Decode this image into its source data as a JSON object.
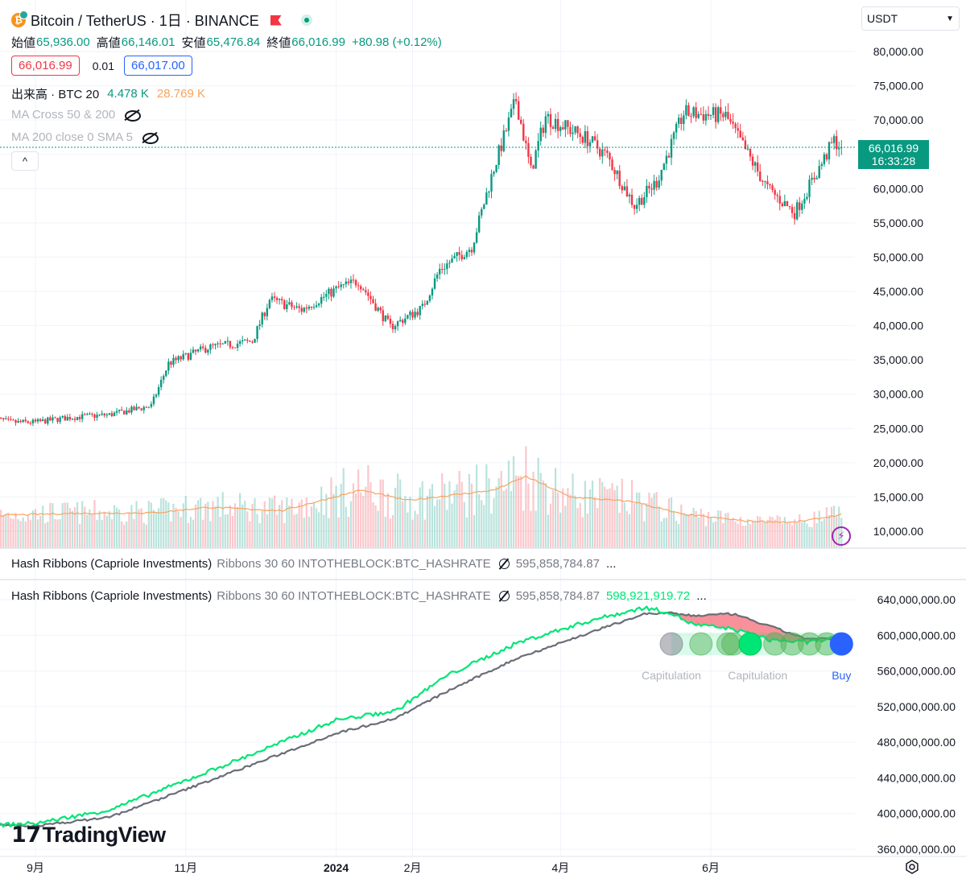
{
  "header": {
    "title": "Bitcoin / TetherUS · 1日 · BINANCE",
    "ohlc": [
      {
        "label": "始値",
        "value": "65,936.00"
      },
      {
        "label": "高値",
        "value": "66,146.01"
      },
      {
        "label": "安値",
        "value": "65,476.84"
      },
      {
        "label": "終値",
        "value": "66,016.99"
      }
    ],
    "change": "+80.98 (+0.12%)",
    "bid": "66,016.99",
    "spread": "0.01",
    "ask": "66,017.00"
  },
  "volume_legend": {
    "label": "出来高 · BTC 20",
    "value1": "4.478 K",
    "value2": "28.769 K"
  },
  "hidden_indicators": [
    "MA Cross 50 & 200",
    "MA 200 close 0 SMA 5"
  ],
  "collapse_label": "^",
  "currency": "USDT",
  "last_price_tag": {
    "price": "66,016.99",
    "countdown": "16:33:28"
  },
  "colors": {
    "up": "#089981",
    "down": "#f23645",
    "hash_fast": "#00e676",
    "hash_slow": "#6a6d78",
    "vol_ma": "#f7a35c",
    "buy": "#2962ff"
  },
  "indicator_pane1": {
    "name": "Hash Ribbons (Capriole Investments)",
    "params": "Ribbons 30 60 INTOTHEBLOCK:BTC_HASHRATE",
    "value": "595,858,784.87",
    "more": "..."
  },
  "indicator_pane2": {
    "name": "Hash Ribbons (Capriole Investments)",
    "params": "Ribbons 30 60 INTOTHEBLOCK:BTC_HASHRATE",
    "value": "595,858,784.87",
    "value2": "598,921,919.72",
    "more": "..."
  },
  "signal_labels": [
    {
      "text": "Capitulation",
      "color": "#b2b5be"
    },
    {
      "text": "Capitulation",
      "color": "#b2b5be"
    },
    {
      "text": "Buy",
      "color": "#2962ff"
    }
  ],
  "watermark": "TradingView",
  "chart_data": {
    "type": "candlestick",
    "price_axis_ticks": [
      "80,000.00",
      "75,000.00",
      "70,000.00",
      "65,000.00",
      "60,000.00",
      "55,000.00",
      "50,000.00",
      "45,000.00",
      "40,000.00",
      "35,000.00",
      "30,000.00",
      "25,000.00",
      "20,000.00",
      "15,000.00",
      "10,000.00"
    ],
    "price_axis_values": [
      80000,
      75000,
      70000,
      65000,
      60000,
      55000,
      50000,
      45000,
      40000,
      35000,
      30000,
      25000,
      20000,
      15000,
      10000
    ],
    "hash_axis_ticks": [
      "640,000,000.00",
      "600,000,000.00",
      "560,000,000.00",
      "520,000,000.00",
      "480,000,000.00",
      "440,000,000.00",
      "400,000,000.00",
      "360,000,000.00"
    ],
    "hash_axis_values": [
      640000000,
      600000000,
      560000000,
      520000000,
      480000000,
      440000000,
      400000000,
      360000000
    ],
    "time_axis_ticks": [
      {
        "label": "9月",
        "date": "2023-09-01",
        "bold": false
      },
      {
        "label": "11月",
        "date": "2023-11-01",
        "bold": false
      },
      {
        "label": "2024",
        "date": "2024-01-01",
        "bold": true
      },
      {
        "label": "2月",
        "date": "2024-02-01",
        "bold": false
      },
      {
        "label": "4月",
        "date": "2024-04-01",
        "bold": false
      },
      {
        "label": "6月",
        "date": "2024-06-01",
        "bold": false
      }
    ],
    "close_anchors": [
      [
        "2023-08-15",
        26500
      ],
      [
        "2023-08-22",
        25900
      ],
      [
        "2023-09-01",
        25900
      ],
      [
        "2023-09-15",
        26600
      ],
      [
        "2023-10-01",
        27000
      ],
      [
        "2023-10-18",
        28300
      ],
      [
        "2023-10-25",
        34500
      ],
      [
        "2023-11-10",
        36800
      ],
      [
        "2023-11-28",
        37700
      ],
      [
        "2023-12-05",
        43800
      ],
      [
        "2023-12-18",
        42300
      ],
      [
        "2024-01-02",
        45500
      ],
      [
        "2024-01-10",
        46500
      ],
      [
        "2024-01-23",
        39800
      ],
      [
        "2024-02-05",
        42600
      ],
      [
        "2024-02-12",
        48200
      ],
      [
        "2024-02-25",
        51500
      ],
      [
        "2024-03-05",
        63000
      ],
      [
        "2024-03-14",
        73000
      ],
      [
        "2024-03-20",
        62500
      ],
      [
        "2024-03-26",
        70500
      ],
      [
        "2024-04-12",
        67200
      ],
      [
        "2024-04-20",
        64700
      ],
      [
        "2024-05-01",
        57500
      ],
      [
        "2024-05-10",
        61000
      ],
      [
        "2024-05-21",
        71000
      ],
      [
        "2024-06-07",
        70600
      ],
      [
        "2024-06-24",
        60000
      ],
      [
        "2024-07-05",
        56500
      ],
      [
        "2024-07-15",
        63000
      ],
      [
        "2024-07-21",
        67000
      ],
      [
        "2024-07-24",
        66016.99
      ]
    ],
    "volume_ma_anchors": [
      [
        "2023-08-15",
        12300
      ],
      [
        "2023-09-15",
        12600
      ],
      [
        "2023-10-20",
        12700
      ],
      [
        "2023-11-10",
        13500
      ],
      [
        "2023-12-10",
        13000
      ],
      [
        "2024-01-11",
        16000
      ],
      [
        "2024-01-30",
        14500
      ],
      [
        "2024-03-05",
        16000
      ],
      [
        "2024-03-18",
        18000
      ],
      [
        "2024-04-05",
        15000
      ],
      [
        "2024-05-01",
        14300
      ],
      [
        "2024-05-20",
        12500
      ],
      [
        "2024-06-15",
        11500
      ],
      [
        "2024-07-05",
        11300
      ],
      [
        "2024-07-24",
        12400
      ]
    ],
    "hash_fast_anchors": [
      [
        "2023-08-15",
        387000000
      ],
      [
        "2023-09-01",
        389000000
      ],
      [
        "2023-10-01",
        404000000
      ],
      [
        "2023-11-01",
        437000000
      ],
      [
        "2023-12-01",
        470000000
      ],
      [
        "2024-01-01",
        505000000
      ],
      [
        "2024-01-25",
        515000000
      ],
      [
        "2024-02-15",
        555000000
      ],
      [
        "2024-03-15",
        592000000
      ],
      [
        "2024-04-15",
        618000000
      ],
      [
        "2024-05-05",
        631000000
      ],
      [
        "2024-05-15",
        626000000
      ],
      [
        "2024-05-25",
        612000000
      ],
      [
        "2024-06-10",
        607000000
      ],
      [
        "2024-06-25",
        595000000
      ],
      [
        "2024-07-10",
        592000000
      ],
      [
        "2024-07-24",
        598921919.72
      ]
    ],
    "hash_slow_anchors": [
      [
        "2023-08-15",
        387000000
      ],
      [
        "2023-09-01",
        386000000
      ],
      [
        "2023-10-01",
        396000000
      ],
      [
        "2023-11-01",
        427000000
      ],
      [
        "2023-12-01",
        458000000
      ],
      [
        "2024-01-01",
        490000000
      ],
      [
        "2024-01-25",
        507000000
      ],
      [
        "2024-02-15",
        537000000
      ],
      [
        "2024-03-15",
        575000000
      ],
      [
        "2024-04-15",
        605000000
      ],
      [
        "2024-05-05",
        624000000
      ],
      [
        "2024-05-15",
        625000000
      ],
      [
        "2024-05-25",
        622000000
      ],
      [
        "2024-06-10",
        624000000
      ],
      [
        "2024-06-25",
        610000000
      ],
      [
        "2024-07-10",
        596000000
      ],
      [
        "2024-07-24",
        595858784.87
      ]
    ],
    "signal_circles": [
      {
        "date": "2024-05-16",
        "kind": "capitulation"
      },
      {
        "date": "2024-05-28",
        "kind": "capitulation"
      },
      {
        "date": "2024-06-08",
        "kind": "capitulation"
      },
      {
        "date": "2024-06-10",
        "kind": "capitulation"
      },
      {
        "date": "2024-06-17",
        "kind": "capitulation-strong"
      },
      {
        "date": "2024-06-27",
        "kind": "capitulation"
      },
      {
        "date": "2024-07-04",
        "kind": "capitulation"
      },
      {
        "date": "2024-07-11",
        "kind": "capitulation"
      },
      {
        "date": "2024-07-18",
        "kind": "capitulation"
      },
      {
        "date": "2024-07-24",
        "kind": "buy"
      }
    ],
    "signal_label_dates": [
      "2024-05-16",
      "2024-06-20",
      "2024-07-24"
    ]
  }
}
